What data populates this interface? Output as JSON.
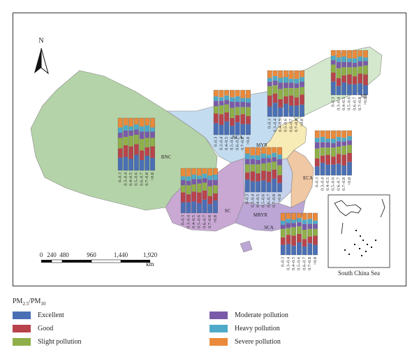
{
  "north_label": "N",
  "scale_bar": {
    "ticks": [
      "0",
      "240",
      "480",
      "960",
      "1,440",
      "1,920"
    ],
    "unit": "km"
  },
  "inset_label": "South China Sea",
  "region_labels": [
    "BNC",
    "NCA",
    "NR",
    "MYR",
    "SC",
    "MRYR",
    "ECA",
    "SCA"
  ],
  "bin_labels": [
    "0–0.3",
    "0.3–0.4",
    "0.4–0.5",
    "0.5–0.6",
    "0.6–0.7",
    "0.7–0.8",
    ">0.8"
  ],
  "legend": {
    "title_main": "PM",
    "title_sub1": "2.5",
    "title_mid": "/PM",
    "title_sub2": "10",
    "items": [
      {
        "label": "Excellent",
        "color": "#4a6fb5"
      },
      {
        "label": "Good",
        "color": "#b8434b"
      },
      {
        "label": "Slight pollution",
        "color": "#8faf48"
      },
      {
        "label": "Moderate pollution",
        "color": "#7a5aa8"
      },
      {
        "label": "Heavy pollution",
        "color": "#4eaac8"
      },
      {
        "label": "Severe pollution",
        "color": "#ea8a3a"
      }
    ]
  },
  "region_colors": {
    "BNC": "#b5d3a8",
    "NCA": "#c4dcf0",
    "NR": "#d3e8cc",
    "MYR": "#f7ebb6",
    "SC": "#c9a8d4",
    "MRYR": "#c7d2ec",
    "ECA": "#f1c8a4",
    "SCA": "#bca6d6"
  }
}
